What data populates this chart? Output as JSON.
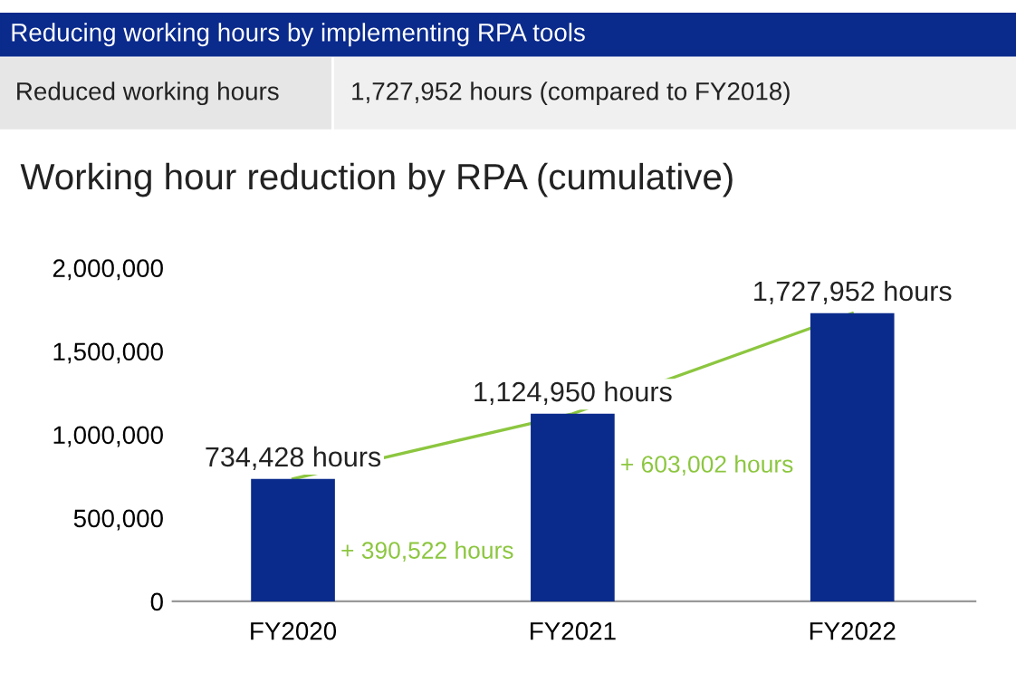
{
  "chart_data": {
    "type": "bar",
    "title": "Working hour reduction by RPA (cumulative)",
    "annotations": [
      "Reducing working hours by implementing RPA tools",
      "Reduced working hours",
      "1,727,952 hours (compared to FY2018)",
      "+ 390,522 hours",
      "+ 603,002 hours"
    ],
    "categories": [
      "FY2020",
      "FY2021",
      "FY2022"
    ],
    "series": [
      {
        "color": "#0a2a8c",
        "values": [
          734428,
          1124950,
          1727952
        ],
        "value_labels": [
          "734,428 hours",
          "1,124,950 hours",
          "1,727,952 hours"
        ]
      },
      {
        "type": "line",
        "color": "#8cc63f",
        "values": [
          734428,
          1124950,
          1727952
        ]
      }
    ],
    "ylim": [
      0,
      2000000
    ],
    "yticks": [
      0,
      {
        "value": 500000,
        "label": "500,000"
      },
      {
        "value": 1000000,
        "label": "1,000,000"
      },
      {
        "value": 1500000,
        "label": "1,500,000"
      },
      {
        "value": 2000000,
        "label": "2,000,000"
      }
    ],
    "grid": false,
    "legend": false
  }
}
